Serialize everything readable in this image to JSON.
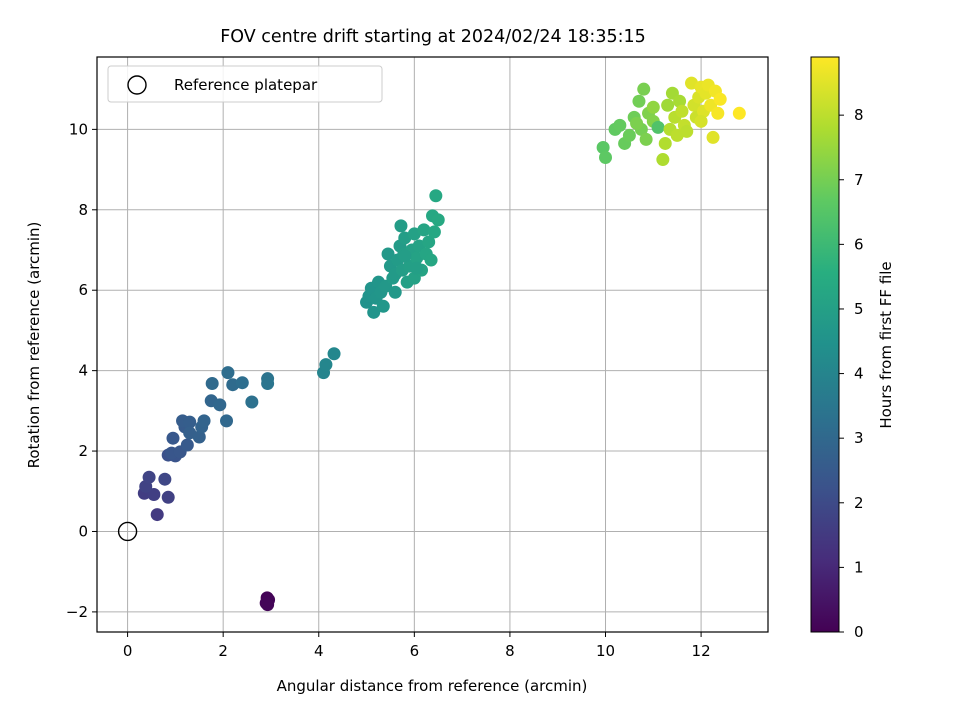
{
  "chart_data": {
    "type": "scatter",
    "title": "FOV centre drift starting at 2024/02/24 18:35:15",
    "xlabel": "Angular distance from reference (arcmin)",
    "ylabel": "Rotation from reference (arcmin)",
    "xlim": [
      -0.64,
      13.4
    ],
    "ylim": [
      -2.5,
      11.8
    ],
    "xticks": [
      0,
      2,
      4,
      6,
      8,
      10,
      12
    ],
    "yticks": [
      -2,
      0,
      2,
      4,
      6,
      8,
      10
    ],
    "xtick_labels": [
      "0",
      "2",
      "4",
      "6",
      "8",
      "10",
      "12"
    ],
    "ytick_labels": [
      "−2",
      "0",
      "2",
      "4",
      "6",
      "8",
      "10"
    ],
    "grid": true,
    "legend": {
      "position": "top-left",
      "label": "Reference platepar"
    },
    "reference_point": {
      "x": 0,
      "y": 0
    },
    "colorbar": {
      "label": "Hours from first FF file",
      "range": [
        0,
        8.9
      ],
      "ticks": [
        0,
        1,
        2,
        3,
        4,
        5,
        6,
        7,
        8
      ],
      "tick_labels": [
        "0",
        "1",
        "2",
        "3",
        "4",
        "5",
        "6",
        "7",
        "8"
      ],
      "colormap": [
        "#440154",
        "#472d7b",
        "#3b528b",
        "#2c728e",
        "#21918c",
        "#28ae80",
        "#5ec962",
        "#addc30",
        "#fde725"
      ]
    },
    "points": [
      {
        "x": 2.92,
        "y": -1.65,
        "h": 0.05
      },
      {
        "x": 2.95,
        "y": -1.7,
        "h": 0.08
      },
      {
        "x": 2.9,
        "y": -1.78,
        "h": 0.1
      },
      {
        "x": 2.93,
        "y": -1.82,
        "h": 0.12
      },
      {
        "x": 0.62,
        "y": 0.42,
        "h": 1.5
      },
      {
        "x": 0.35,
        "y": 0.95,
        "h": 1.6
      },
      {
        "x": 0.55,
        "y": 0.92,
        "h": 1.65
      },
      {
        "x": 0.85,
        "y": 0.85,
        "h": 1.7
      },
      {
        "x": 0.38,
        "y": 1.12,
        "h": 1.75
      },
      {
        "x": 0.45,
        "y": 1.35,
        "h": 1.8
      },
      {
        "x": 0.78,
        "y": 1.3,
        "h": 1.9
      },
      {
        "x": 0.85,
        "y": 1.9,
        "h": 2.2
      },
      {
        "x": 1.0,
        "y": 1.88,
        "h": 2.3
      },
      {
        "x": 0.92,
        "y": 1.95,
        "h": 2.35
      },
      {
        "x": 1.1,
        "y": 1.98,
        "h": 2.4
      },
      {
        "x": 0.95,
        "y": 2.32,
        "h": 2.45
      },
      {
        "x": 1.25,
        "y": 2.15,
        "h": 2.5
      },
      {
        "x": 1.2,
        "y": 2.6,
        "h": 2.55
      },
      {
        "x": 1.15,
        "y": 2.75,
        "h": 2.6
      },
      {
        "x": 1.3,
        "y": 2.72,
        "h": 2.65
      },
      {
        "x": 1.3,
        "y": 2.45,
        "h": 2.7
      },
      {
        "x": 1.5,
        "y": 2.35,
        "h": 2.75
      },
      {
        "x": 1.55,
        "y": 2.6,
        "h": 2.8
      },
      {
        "x": 1.6,
        "y": 2.75,
        "h": 2.85
      },
      {
        "x": 1.75,
        "y": 3.25,
        "h": 2.9
      },
      {
        "x": 1.93,
        "y": 3.15,
        "h": 2.95
      },
      {
        "x": 2.07,
        "y": 2.75,
        "h": 3.0
      },
      {
        "x": 1.77,
        "y": 3.68,
        "h": 3.05
      },
      {
        "x": 2.2,
        "y": 3.65,
        "h": 3.1
      },
      {
        "x": 2.1,
        "y": 3.95,
        "h": 3.15
      },
      {
        "x": 2.4,
        "y": 3.7,
        "h": 3.2
      },
      {
        "x": 2.6,
        "y": 3.22,
        "h": 3.3
      },
      {
        "x": 2.93,
        "y": 3.8,
        "h": 3.4
      },
      {
        "x": 2.93,
        "y": 3.68,
        "h": 3.45
      },
      {
        "x": 4.1,
        "y": 3.95,
        "h": 4.0
      },
      {
        "x": 4.15,
        "y": 4.15,
        "h": 4.05
      },
      {
        "x": 4.32,
        "y": 4.42,
        "h": 4.1
      },
      {
        "x": 5.0,
        "y": 5.7,
        "h": 4.5
      },
      {
        "x": 5.05,
        "y": 5.85,
        "h": 4.52
      },
      {
        "x": 5.1,
        "y": 6.05,
        "h": 4.55
      },
      {
        "x": 5.15,
        "y": 5.45,
        "h": 4.58
      },
      {
        "x": 5.2,
        "y": 5.8,
        "h": 4.6
      },
      {
        "x": 5.25,
        "y": 6.2,
        "h": 4.62
      },
      {
        "x": 5.3,
        "y": 5.95,
        "h": 4.65
      },
      {
        "x": 5.35,
        "y": 5.6,
        "h": 4.68
      },
      {
        "x": 5.4,
        "y": 6.1,
        "h": 4.7
      },
      {
        "x": 5.45,
        "y": 6.9,
        "h": 4.72
      },
      {
        "x": 5.5,
        "y": 6.6,
        "h": 4.75
      },
      {
        "x": 5.55,
        "y": 6.3,
        "h": 4.78
      },
      {
        "x": 5.6,
        "y": 6.4,
        "h": 4.8
      },
      {
        "x": 5.65,
        "y": 6.75,
        "h": 4.82
      },
      {
        "x": 5.7,
        "y": 7.1,
        "h": 4.85
      },
      {
        "x": 5.72,
        "y": 7.6,
        "h": 4.88
      },
      {
        "x": 5.75,
        "y": 6.5,
        "h": 4.9
      },
      {
        "x": 5.78,
        "y": 6.9,
        "h": 4.92
      },
      {
        "x": 5.8,
        "y": 7.3,
        "h": 4.95
      },
      {
        "x": 5.85,
        "y": 6.2,
        "h": 4.98
      },
      {
        "x": 5.9,
        "y": 6.6,
        "h": 5.0
      },
      {
        "x": 5.95,
        "y": 7.0,
        "h": 5.02
      },
      {
        "x": 6.0,
        "y": 7.4,
        "h": 5.05
      },
      {
        "x": 6.0,
        "y": 6.3,
        "h": 5.08
      },
      {
        "x": 6.05,
        "y": 6.8,
        "h": 5.1
      },
      {
        "x": 6.1,
        "y": 7.1,
        "h": 5.12
      },
      {
        "x": 6.15,
        "y": 6.5,
        "h": 5.15
      },
      {
        "x": 6.2,
        "y": 7.5,
        "h": 5.18
      },
      {
        "x": 6.25,
        "y": 6.9,
        "h": 5.2
      },
      {
        "x": 6.3,
        "y": 7.2,
        "h": 5.22
      },
      {
        "x": 6.35,
        "y": 6.75,
        "h": 5.25
      },
      {
        "x": 6.38,
        "y": 7.85,
        "h": 5.28
      },
      {
        "x": 6.42,
        "y": 7.45,
        "h": 5.3
      },
      {
        "x": 6.45,
        "y": 8.35,
        "h": 5.32
      },
      {
        "x": 6.5,
        "y": 7.75,
        "h": 5.35
      },
      {
        "x": 5.6,
        "y": 5.95,
        "h": 4.7
      },
      {
        "x": 5.8,
        "y": 6.85,
        "h": 4.9
      },
      {
        "x": 6.05,
        "y": 6.55,
        "h": 5.0
      },
      {
        "x": 9.95,
        "y": 9.55,
        "h": 6.6
      },
      {
        "x": 10.0,
        "y": 9.3,
        "h": 6.65
      },
      {
        "x": 10.2,
        "y": 10.0,
        "h": 6.7
      },
      {
        "x": 10.3,
        "y": 10.1,
        "h": 6.75
      },
      {
        "x": 10.4,
        "y": 9.65,
        "h": 6.8
      },
      {
        "x": 10.5,
        "y": 9.85,
        "h": 6.85
      },
      {
        "x": 10.6,
        "y": 10.3,
        "h": 6.9
      },
      {
        "x": 10.7,
        "y": 10.7,
        "h": 6.95
      },
      {
        "x": 10.75,
        "y": 10.0,
        "h": 7.0
      },
      {
        "x": 10.8,
        "y": 11.0,
        "h": 7.05
      },
      {
        "x": 10.85,
        "y": 9.75,
        "h": 7.1
      },
      {
        "x": 10.9,
        "y": 10.4,
        "h": 7.15
      },
      {
        "x": 11.0,
        "y": 10.2,
        "h": 7.2
      },
      {
        "x": 11.1,
        "y": 10.05,
        "h": 6.4
      },
      {
        "x": 11.2,
        "y": 9.25,
        "h": 7.8
      },
      {
        "x": 11.25,
        "y": 9.65,
        "h": 7.85
      },
      {
        "x": 11.3,
        "y": 10.6,
        "h": 7.6
      },
      {
        "x": 11.35,
        "y": 10.0,
        "h": 7.9
      },
      {
        "x": 11.4,
        "y": 10.9,
        "h": 7.65
      },
      {
        "x": 11.45,
        "y": 10.3,
        "h": 7.95
      },
      {
        "x": 11.5,
        "y": 9.85,
        "h": 8.0
      },
      {
        "x": 11.55,
        "y": 10.7,
        "h": 7.7
      },
      {
        "x": 11.6,
        "y": 10.45,
        "h": 8.05
      },
      {
        "x": 11.65,
        "y": 10.1,
        "h": 8.1
      },
      {
        "x": 11.8,
        "y": 11.15,
        "h": 8.5
      },
      {
        "x": 11.85,
        "y": 10.6,
        "h": 8.3
      },
      {
        "x": 11.9,
        "y": 10.3,
        "h": 8.2
      },
      {
        "x": 11.95,
        "y": 10.8,
        "h": 8.4
      },
      {
        "x": 12.0,
        "y": 11.05,
        "h": 8.6
      },
      {
        "x": 12.05,
        "y": 10.45,
        "h": 8.45
      },
      {
        "x": 12.1,
        "y": 10.9,
        "h": 8.55
      },
      {
        "x": 12.15,
        "y": 11.1,
        "h": 8.65
      },
      {
        "x": 12.2,
        "y": 10.6,
        "h": 8.7
      },
      {
        "x": 12.25,
        "y": 9.8,
        "h": 8.5
      },
      {
        "x": 12.3,
        "y": 10.95,
        "h": 8.75
      },
      {
        "x": 12.35,
        "y": 10.4,
        "h": 8.8
      },
      {
        "x": 12.4,
        "y": 10.75,
        "h": 8.85
      },
      {
        "x": 12.8,
        "y": 10.4,
        "h": 8.9
      },
      {
        "x": 11.0,
        "y": 10.55,
        "h": 7.4
      },
      {
        "x": 10.65,
        "y": 10.15,
        "h": 7.1
      },
      {
        "x": 11.7,
        "y": 9.95,
        "h": 8.0
      },
      {
        "x": 12.0,
        "y": 10.2,
        "h": 8.35
      }
    ]
  }
}
